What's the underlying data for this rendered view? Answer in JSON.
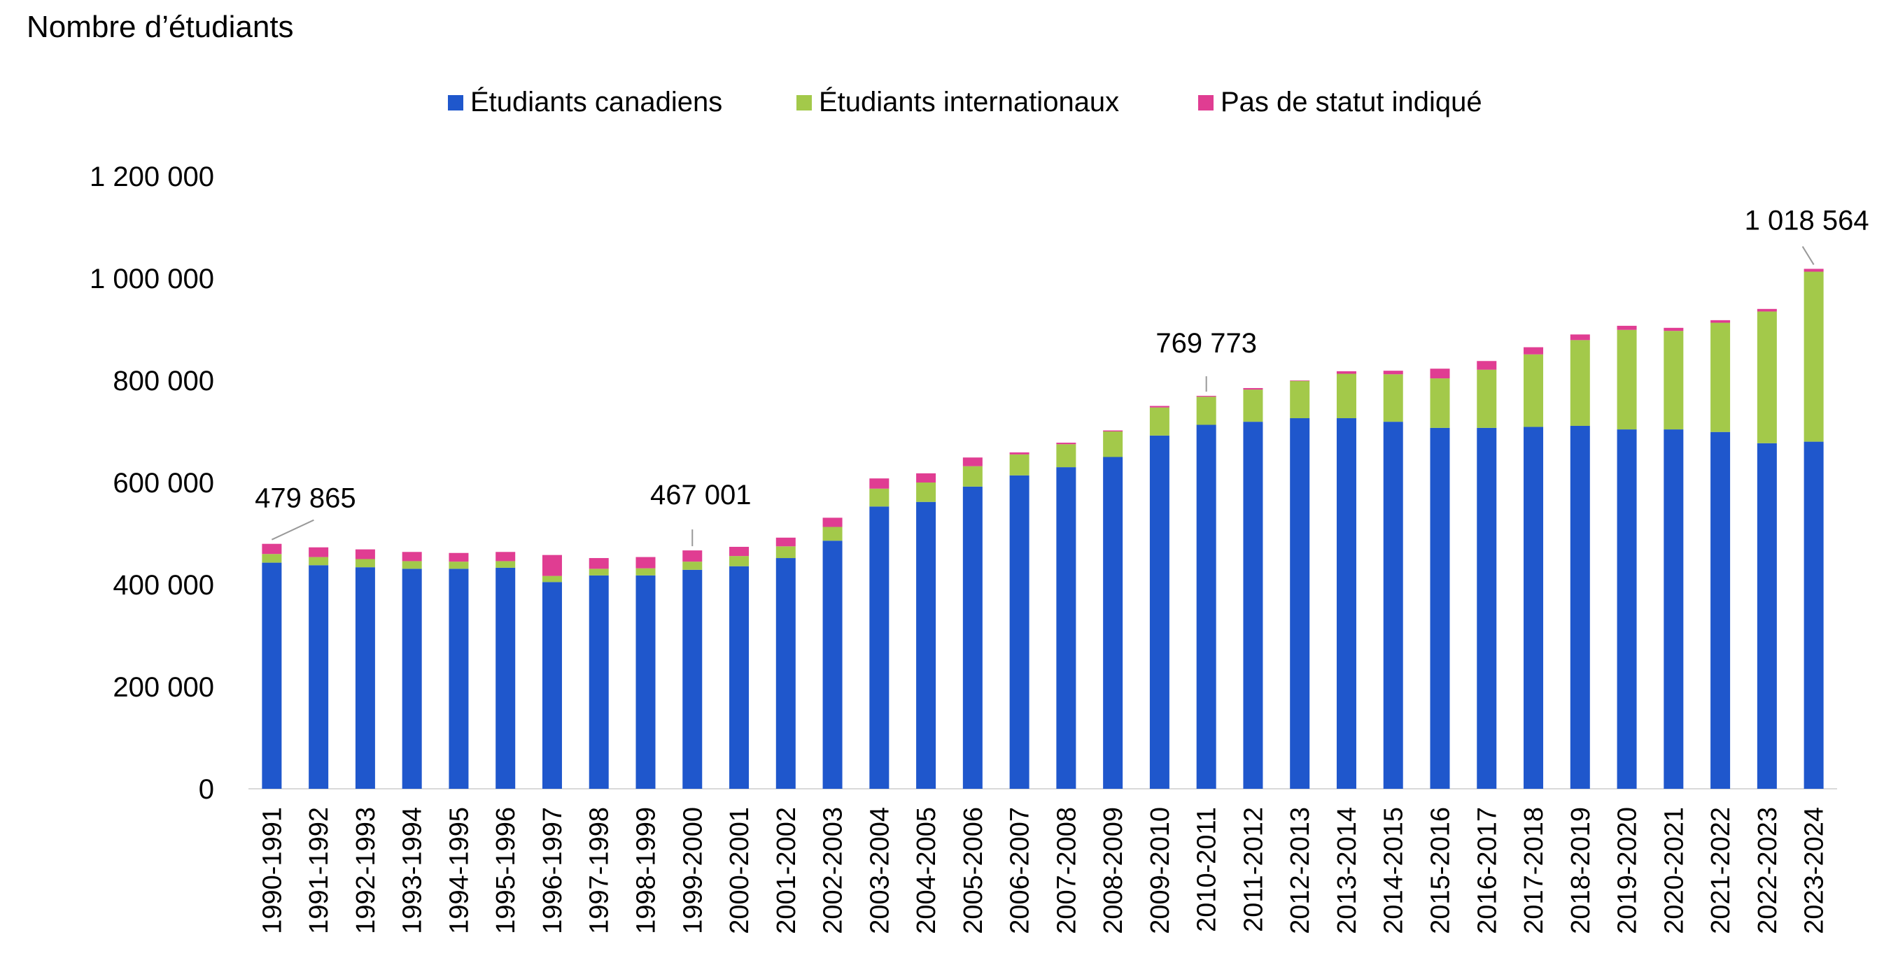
{
  "chart_data": {
    "type": "bar",
    "stacked": true,
    "ylabel": "Nombre d’étudiants",
    "ylim": [
      0,
      1200000
    ],
    "yticks": [
      "0",
      "200 000",
      "400 000",
      "600 000",
      "800 000",
      "1 000 000",
      "1 200 000"
    ],
    "yticks_values": [
      0,
      200000,
      400000,
      600000,
      800000,
      1000000,
      1200000
    ],
    "legend_position": "top",
    "grid": false,
    "categories": [
      "1990-1991",
      "1991-1992",
      "1992-1993",
      "1993-1994",
      "1994-1995",
      "1995-1996",
      "1996-1997",
      "1997-1998",
      "1998-1999",
      "1999-2000",
      "2000-2001",
      "2001-2002",
      "2002-2003",
      "2003-2004",
      "2004-2005",
      "2005-2006",
      "2006-2007",
      "2007-2008",
      "2008-2009",
      "2009-2010",
      "2010-2011",
      "2011-2012",
      "2012-2013",
      "2013-2014",
      "2014-2015",
      "2015-2016",
      "2016-2017",
      "2017-2018",
      "2018-2019",
      "2019-2020",
      "2020-2021",
      "2021-2022",
      "2022-2023",
      "2023-2024"
    ],
    "series": [
      {
        "name": "Étudiants canadiens",
        "color": "#1f57cc",
        "values": [
          443000,
          438000,
          434000,
          431000,
          431000,
          433000,
          405000,
          418000,
          418000,
          429000,
          436000,
          452000,
          486000,
          553000,
          562000,
          592000,
          614000,
          630000,
          650000,
          692000,
          713000,
          719000,
          726000,
          726000,
          719000,
          707000,
          707000,
          709000,
          711000,
          704000,
          704000,
          699000,
          677000,
          680000
        ]
      },
      {
        "name": "Étudiants internationaux",
        "color": "#a3c94a",
        "values": [
          17000,
          16000,
          16000,
          15000,
          14000,
          13000,
          12000,
          13000,
          14000,
          16000,
          20000,
          23000,
          27000,
          35000,
          38000,
          40000,
          41000,
          45000,
          50000,
          55000,
          55000,
          63000,
          73000,
          87000,
          93000,
          97000,
          114000,
          142000,
          168000,
          195000,
          193000,
          214000,
          258000,
          333000
        ]
      },
      {
        "name": "Pas de statut indiqué",
        "color": "#e03d92",
        "values": [
          19865,
          19000,
          19000,
          18000,
          17000,
          18000,
          41000,
          21000,
          22000,
          22001,
          18000,
          17000,
          18000,
          20000,
          18000,
          17000,
          4000,
          3000,
          2000,
          3000,
          1773,
          3000,
          1000,
          5000,
          7000,
          19000,
          17000,
          14000,
          11000,
          8000,
          6000,
          5000,
          5000,
          5564
        ]
      }
    ],
    "annotations": [
      {
        "label": "479 865",
        "category": "1990-1991",
        "value": 479865
      },
      {
        "label": "467 001",
        "category": "1999-2000",
        "value": 467001
      },
      {
        "label": "769 773",
        "category": "2010-2011",
        "value": 769773
      },
      {
        "label": "1 018 564",
        "category": "2023-2024",
        "value": 1018564
      }
    ]
  }
}
